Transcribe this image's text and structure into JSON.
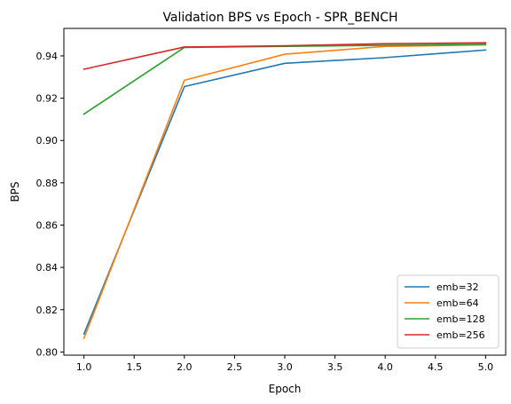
{
  "chart_data": {
    "type": "line",
    "title": "Validation BPS vs Epoch - SPR_BENCH",
    "xlabel": "Epoch",
    "ylabel": "BPS",
    "xlim": [
      0.8,
      5.2
    ],
    "ylim": [
      0.7985,
      0.953
    ],
    "xticks": [
      "1.0",
      "1.5",
      "2.0",
      "2.5",
      "3.0",
      "3.5",
      "4.0",
      "4.5",
      "5.0"
    ],
    "yticks": [
      "0.80",
      "0.82",
      "0.84",
      "0.86",
      "0.88",
      "0.90",
      "0.92",
      "0.94"
    ],
    "x": [
      1,
      2,
      3,
      4,
      5
    ],
    "grid": false,
    "legend_position": "lower-right",
    "series": [
      {
        "name": "emb=32",
        "color": "#1f77b4",
        "values": [
          0.8085,
          0.9255,
          0.9365,
          0.9392,
          0.9428
        ]
      },
      {
        "name": "emb=64",
        "color": "#ff7f0e",
        "values": [
          0.8065,
          0.9285,
          0.9408,
          0.9445,
          0.9452
        ]
      },
      {
        "name": "emb=128",
        "color": "#2ca02c",
        "values": [
          0.9125,
          0.944,
          0.9445,
          0.945,
          0.9455
        ]
      },
      {
        "name": "emb=256",
        "color": "#d62728",
        "values": [
          0.9337,
          0.9442,
          0.9448,
          0.9458,
          0.9462
        ]
      }
    ]
  }
}
